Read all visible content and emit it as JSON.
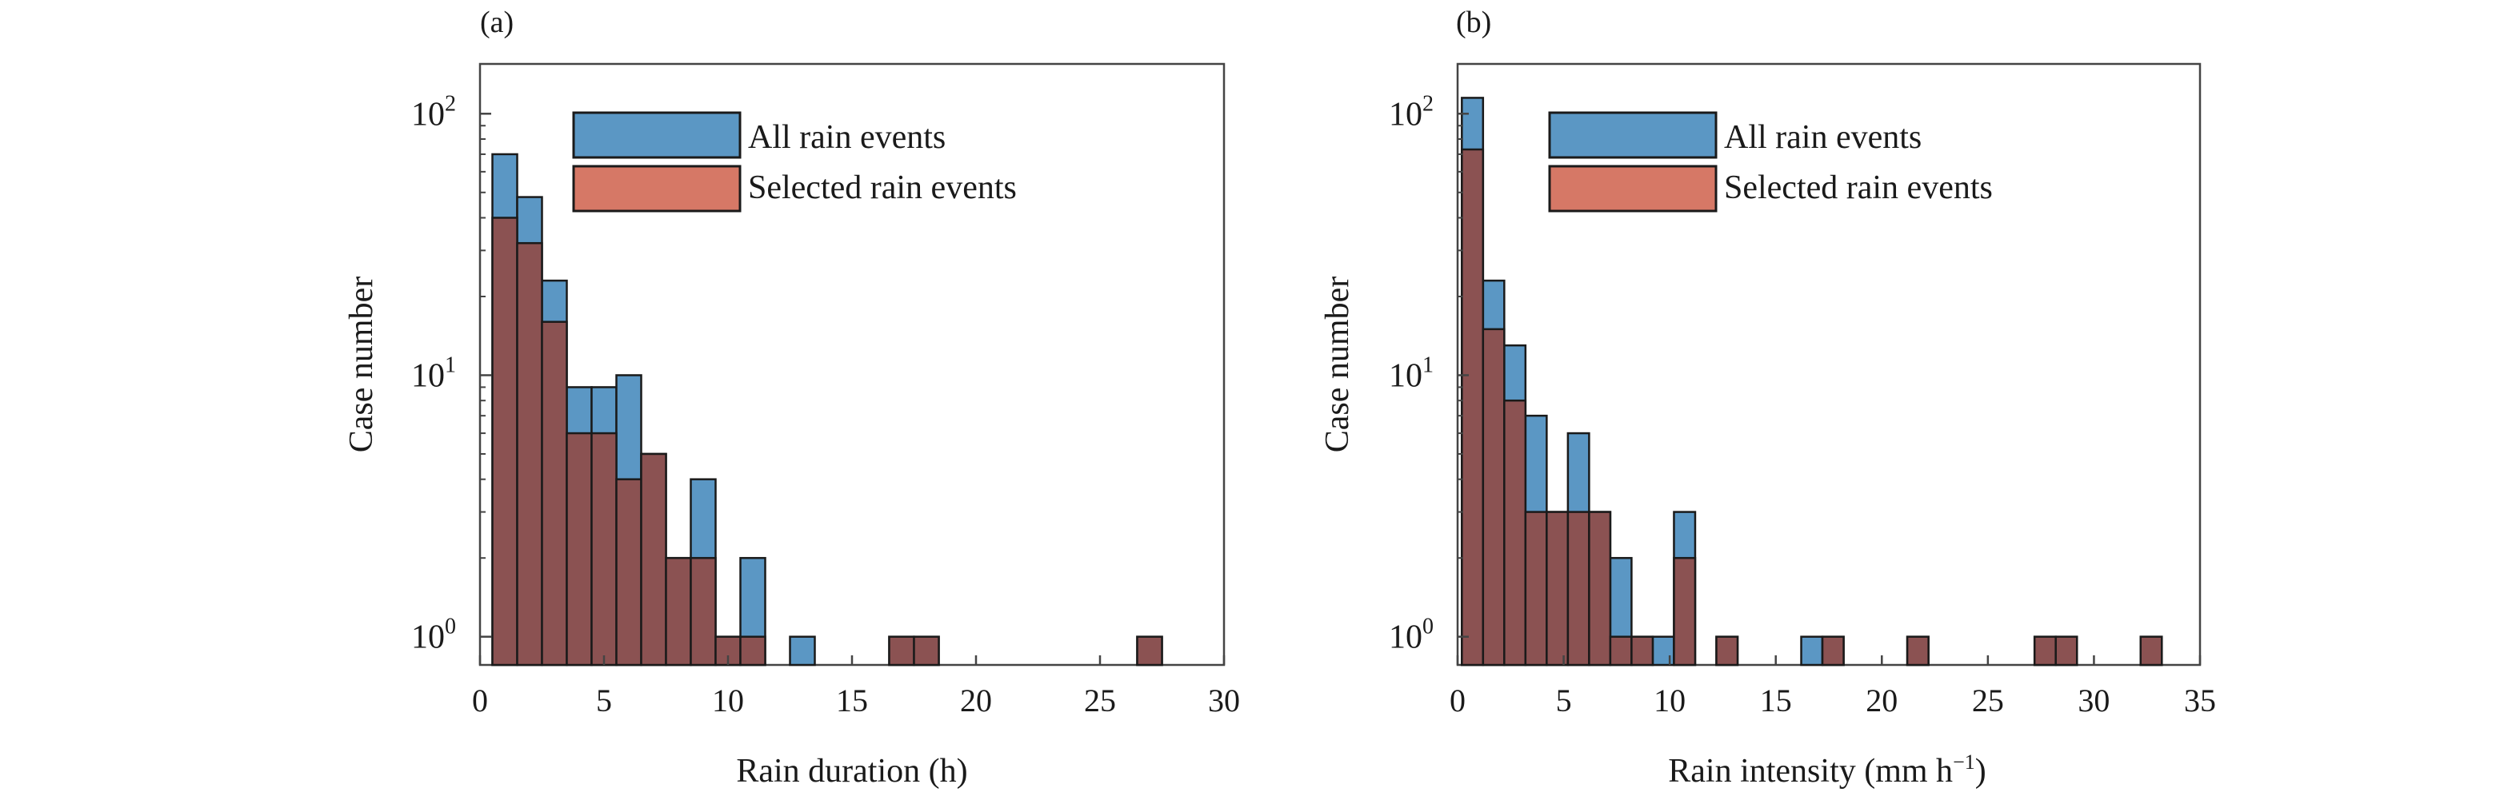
{
  "colors": {
    "all_fill": "#5b97c4",
    "selected_fill": "#8b5252",
    "legend_selected_fill": "#d67866",
    "edge": "#1a1a1a",
    "frame": "#444444"
  },
  "chart_data": [
    {
      "type": "bar",
      "scale": "log",
      "panel_label": "(a)",
      "xlabel": "Rain duration (h)",
      "ylabel": "Case number",
      "xlim": [
        0,
        30
      ],
      "ylim": [
        0.78,
        155
      ],
      "xticks": [
        0,
        5,
        10,
        15,
        20,
        25,
        30
      ],
      "yticks": [
        1,
        10,
        100
      ],
      "ytick_labels": [
        {
          "base": "10",
          "exp": "0"
        },
        {
          "base": "10",
          "exp": "1"
        },
        {
          "base": "10",
          "exp": "2"
        }
      ],
      "legend_position": "top",
      "bin_width": 1,
      "bins_start": [
        0.5,
        1.5,
        2.5,
        3.5,
        4.5,
        5.5,
        6.5,
        7.5,
        8.5,
        9.5,
        10.5,
        11.5,
        12.5,
        13.5,
        14.5,
        15.5,
        16.5,
        17.5,
        18.5,
        19.5,
        20.5,
        21.5,
        22.5,
        23.5,
        24.5,
        25.5,
        26.5
      ],
      "series": [
        {
          "name": "All rain events",
          "key": "all",
          "values": [
            70,
            48,
            23,
            9,
            9,
            10,
            5,
            2,
            4,
            1,
            2,
            0,
            1,
            0,
            0,
            0,
            1,
            1,
            0,
            0,
            0,
            0,
            0,
            0,
            0,
            0,
            1
          ]
        },
        {
          "name": "Selected rain events",
          "key": "selected",
          "values": [
            40,
            32,
            16,
            6,
            6,
            4,
            5,
            2,
            2,
            1,
            1,
            0,
            0,
            0,
            0,
            0,
            1,
            1,
            0,
            0,
            0,
            0,
            0,
            0,
            0,
            0,
            1
          ]
        }
      ]
    },
    {
      "type": "bar",
      "scale": "log",
      "panel_label": "(b)",
      "xlabel": "Rain intensity (mm h",
      "xlabel_sup": "−1",
      "xlabel_suffix": ")",
      "ylabel": "Case number",
      "xlim": [
        0,
        35
      ],
      "ylim": [
        0.78,
        155
      ],
      "xticks": [
        0,
        5,
        10,
        15,
        20,
        25,
        30,
        35
      ],
      "yticks": [
        1,
        10,
        100
      ],
      "ytick_labels": [
        {
          "base": "10",
          "exp": "0"
        },
        {
          "base": "10",
          "exp": "1"
        },
        {
          "base": "10",
          "exp": "2"
        }
      ],
      "legend_position": "top",
      "bin_width": 1,
      "bins_start": [
        0.2,
        1.2,
        2.2,
        3.2,
        4.2,
        5.2,
        6.2,
        7.2,
        8.2,
        9.2,
        10.2,
        11.2,
        12.2,
        13.2,
        14.2,
        15.2,
        16.2,
        17.2,
        18.2,
        19.2,
        20.2,
        21.2,
        22.2,
        23.2,
        24.2,
        25.2,
        26.2,
        27.2,
        28.2,
        29.2,
        30.2,
        31.2,
        32.2
      ],
      "series": [
        {
          "name": "All rain events",
          "key": "all",
          "values": [
            115,
            23,
            13,
            7,
            3,
            6,
            3,
            2,
            1,
            1,
            3,
            0,
            1,
            0,
            0,
            0,
            1,
            1,
            0,
            0,
            0,
            1,
            0,
            0,
            0,
            0,
            0,
            1,
            1,
            0,
            0,
            0,
            1
          ]
        },
        {
          "name": "Selected rain events",
          "key": "selected",
          "values": [
            73,
            15,
            8,
            3,
            3,
            3,
            3,
            1,
            1,
            0,
            2,
            0,
            1,
            0,
            0,
            0,
            0,
            1,
            0,
            0,
            0,
            1,
            0,
            0,
            0,
            0,
            0,
            1,
            1,
            0,
            0,
            0,
            1
          ]
        }
      ]
    }
  ]
}
